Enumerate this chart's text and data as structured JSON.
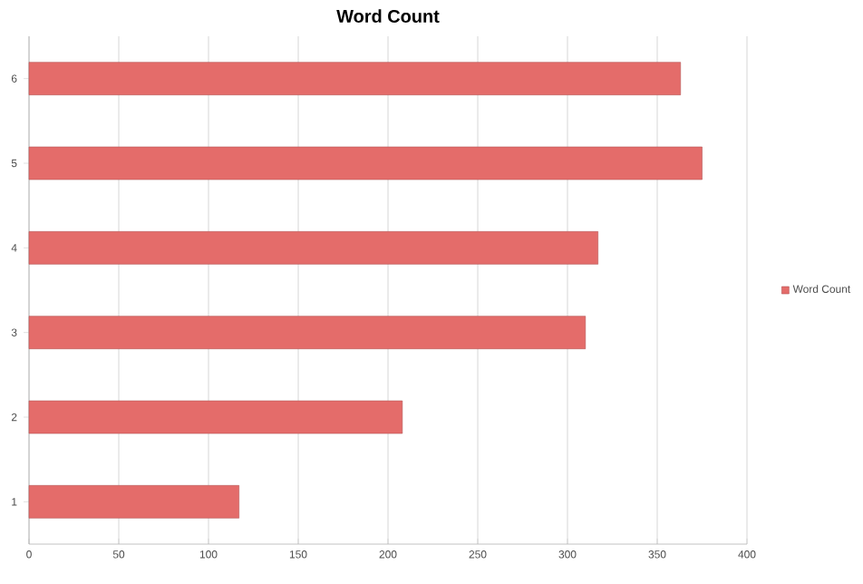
{
  "chart_data": {
    "type": "bar",
    "orientation": "horizontal",
    "title": "Word Count",
    "categories": [
      "6",
      "5",
      "4",
      "3",
      "2",
      "1"
    ],
    "series": [
      {
        "name": "Word Count",
        "color": "#e46c6a",
        "values": [
          363,
          375,
          317,
          310,
          208,
          117
        ]
      }
    ],
    "xlim": [
      0,
      400
    ],
    "xticks": [
      0,
      50,
      100,
      150,
      200,
      250,
      300,
      350,
      400
    ],
    "grid": "x",
    "legend": "right"
  }
}
